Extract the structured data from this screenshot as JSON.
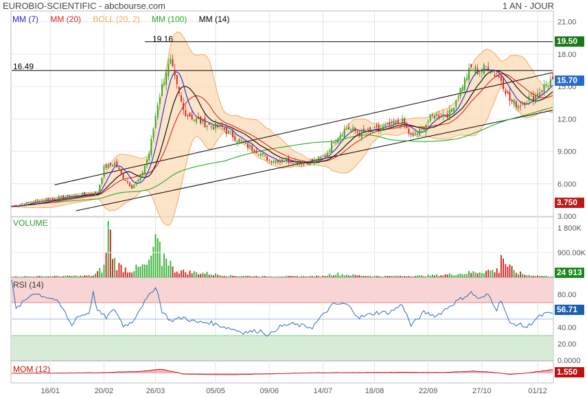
{
  "header": {
    "title": "EUROBIO-SCIENTIFIC - abcbourse.com",
    "period": "1 AN - JOUR"
  },
  "colors": {
    "mm7": "#2222dd",
    "mm20": "#e02020",
    "boll": "#f2a860",
    "mm100": "#22aa22",
    "mm14": "#000000",
    "candle_up": "#22aa22",
    "candle_down": "#d02020",
    "volume": "#30b030",
    "rsi_line": "#2a6ab8",
    "mom_line": "#c01010"
  },
  "legend": [
    {
      "key": "mm7",
      "label": "MM (7)"
    },
    {
      "key": "mm20",
      "label": "MM (20)"
    },
    {
      "key": "boll",
      "label": "BOLL (20, 2)"
    },
    {
      "key": "mm100",
      "label": "MM (100)"
    },
    {
      "key": "mm14",
      "label": "MM (14)"
    }
  ],
  "price_panel": {
    "ylim": [
      3.0,
      22.0
    ],
    "ticks": [
      "21.00",
      "18.00",
      "15.00",
      "12.00",
      "9.000",
      "6.000",
      "3.000"
    ],
    "tick_values": [
      21,
      18,
      15,
      12,
      9,
      6,
      3
    ],
    "hline_high": {
      "value": 19.16,
      "label": "19.16"
    },
    "hline_ref": {
      "value": 16.49,
      "label": "16.49"
    },
    "badge_high": "19.50",
    "badge_last": "15.70",
    "badge_low": "3.750"
  },
  "volume_panel": {
    "label": "VOLUME",
    "ticks": [
      "1 800K",
      "900.00K"
    ],
    "tick_values": [
      1800,
      900
    ],
    "ylim": [
      0,
      2200
    ],
    "badge": "24 913"
  },
  "rsi_panel": {
    "label": "RSI (14)",
    "ticks": [
      "80.00",
      "60.00",
      "40.00",
      "20.00",
      "0.0000"
    ],
    "tick_values": [
      80,
      60,
      40,
      20,
      0
    ],
    "ylim": [
      0,
      100
    ],
    "overbought": 70,
    "oversold": 30,
    "badge": "56.71"
  },
  "mom_panel": {
    "label": "MOM (12)",
    "badge": "1.550"
  },
  "x_axis": {
    "labels": [
      "16/01",
      "20/02",
      "26/03",
      "05/05",
      "09/06",
      "14/07",
      "18/08",
      "22/09",
      "27/10",
      "01/12"
    ],
    "label_index": [
      18,
      43,
      67,
      95,
      120,
      145,
      169,
      194,
      219,
      245
    ]
  },
  "chart_data": {
    "type": "line",
    "title": "EUROBIO-SCIENTIFIC - abcbourse.com",
    "period": "1 AN - JOUR",
    "x_dates": [
      "16/01",
      "20/02",
      "26/03",
      "05/05",
      "09/06",
      "14/07",
      "18/08",
      "22/09",
      "27/10",
      "01/12"
    ],
    "close_keyframes": [
      [
        0,
        3.9
      ],
      [
        12,
        4.4
      ],
      [
        25,
        4.8
      ],
      [
        40,
        5.2
      ],
      [
        43,
        7.5
      ],
      [
        48,
        7.9
      ],
      [
        52,
        6.6
      ],
      [
        56,
        5.7
      ],
      [
        60,
        6.6
      ],
      [
        64,
        8.8
      ],
      [
        68,
        13.5
      ],
      [
        72,
        16.5
      ],
      [
        74,
        17.2
      ],
      [
        76,
        15.6
      ],
      [
        80,
        12.8
      ],
      [
        85,
        12.0
      ],
      [
        92,
        11.4
      ],
      [
        98,
        11.2
      ],
      [
        104,
        10.3
      ],
      [
        110,
        9.5
      ],
      [
        116,
        8.8
      ],
      [
        120,
        8.2
      ],
      [
        126,
        8.2
      ],
      [
        134,
        8.0
      ],
      [
        140,
        8.0
      ],
      [
        146,
        8.6
      ],
      [
        150,
        10.0
      ],
      [
        156,
        11.2
      ],
      [
        162,
        10.7
      ],
      [
        170,
        11.0
      ],
      [
        176,
        11.4
      ],
      [
        182,
        11.7
      ],
      [
        186,
        10.4
      ],
      [
        190,
        10.8
      ],
      [
        196,
        12.3
      ],
      [
        204,
        12.5
      ],
      [
        210,
        15.2
      ],
      [
        214,
        16.7
      ],
      [
        218,
        16.4
      ],
      [
        222,
        16.9
      ],
      [
        226,
        16.0
      ],
      [
        228,
        15.7
      ],
      [
        232,
        13.7
      ],
      [
        236,
        13.3
      ],
      [
        240,
        13.8
      ],
      [
        244,
        14.2
      ],
      [
        248,
        15.0
      ],
      [
        252,
        15.7
      ]
    ],
    "volume_keyframes": [
      [
        0,
        25
      ],
      [
        20,
        40
      ],
      [
        38,
        60
      ],
      [
        43,
        350
      ],
      [
        45,
        1800
      ],
      [
        48,
        580
      ],
      [
        50,
        400
      ],
      [
        55,
        250
      ],
      [
        60,
        350
      ],
      [
        64,
        450
      ],
      [
        66,
        1050
      ],
      [
        68,
        1150
      ],
      [
        70,
        600
      ],
      [
        72,
        900
      ],
      [
        75,
        300
      ],
      [
        80,
        200
      ],
      [
        90,
        150
      ],
      [
        100,
        60
      ],
      [
        120,
        30
      ],
      [
        145,
        40
      ],
      [
        150,
        130
      ],
      [
        160,
        70
      ],
      [
        170,
        40
      ],
      [
        190,
        50
      ],
      [
        200,
        80
      ],
      [
        210,
        140
      ],
      [
        215,
        180
      ],
      [
        220,
        230
      ],
      [
        227,
        250
      ],
      [
        228,
        950
      ],
      [
        230,
        500
      ],
      [
        234,
        200
      ],
      [
        240,
        80
      ],
      [
        252,
        25
      ]
    ],
    "rsi_keyframes": [
      [
        0,
        98
      ],
      [
        2,
        62
      ],
      [
        10,
        82
      ],
      [
        20,
        74
      ],
      [
        24,
        62
      ],
      [
        28,
        42
      ],
      [
        30,
        52
      ],
      [
        36,
        58
      ],
      [
        38,
        82
      ],
      [
        40,
        60
      ],
      [
        44,
        52
      ],
      [
        48,
        62
      ],
      [
        52,
        42
      ],
      [
        56,
        46
      ],
      [
        60,
        64
      ],
      [
        64,
        78
      ],
      [
        67,
        90
      ],
      [
        68,
        82
      ],
      [
        70,
        60
      ],
      [
        74,
        48
      ],
      [
        80,
        52
      ],
      [
        86,
        46
      ],
      [
        92,
        46
      ],
      [
        100,
        40
      ],
      [
        108,
        34
      ],
      [
        116,
        36
      ],
      [
        120,
        30
      ],
      [
        124,
        40
      ],
      [
        130,
        44
      ],
      [
        140,
        40
      ],
      [
        146,
        58
      ],
      [
        150,
        68
      ],
      [
        156,
        68
      ],
      [
        162,
        52
      ],
      [
        170,
        58
      ],
      [
        176,
        58
      ],
      [
        182,
        68
      ],
      [
        186,
        42
      ],
      [
        192,
        58
      ],
      [
        198,
        54
      ],
      [
        204,
        66
      ],
      [
        210,
        76
      ],
      [
        214,
        82
      ],
      [
        218,
        74
      ],
      [
        222,
        80
      ],
      [
        226,
        62
      ],
      [
        228,
        74
      ],
      [
        232,
        44
      ],
      [
        236,
        44
      ],
      [
        240,
        40
      ],
      [
        244,
        50
      ],
      [
        248,
        56
      ],
      [
        252,
        56.71
      ]
    ],
    "mom_keyframes": [
      [
        0,
        0
      ],
      [
        40,
        0.2
      ],
      [
        60,
        0.8
      ],
      [
        66,
        1.4
      ],
      [
        70,
        1.7
      ],
      [
        74,
        0.9
      ],
      [
        80,
        -0.3
      ],
      [
        100,
        -0.6
      ],
      [
        120,
        -0.2
      ],
      [
        140,
        0.2
      ],
      [
        160,
        0.3
      ],
      [
        180,
        0.4
      ],
      [
        200,
        0.3
      ],
      [
        215,
        0.9
      ],
      [
        222,
        0.6
      ],
      [
        232,
        -0.4
      ],
      [
        240,
        0.1
      ],
      [
        252,
        1.55
      ]
    ],
    "trend_channel": {
      "lower": [
        [
          30,
          3.5
        ],
        [
          252,
          12.8
        ]
      ],
      "upper": [
        [
          20,
          5.9
        ],
        [
          252,
          16.3
        ]
      ]
    },
    "ylim": [
      3.0,
      22.0
    ]
  }
}
